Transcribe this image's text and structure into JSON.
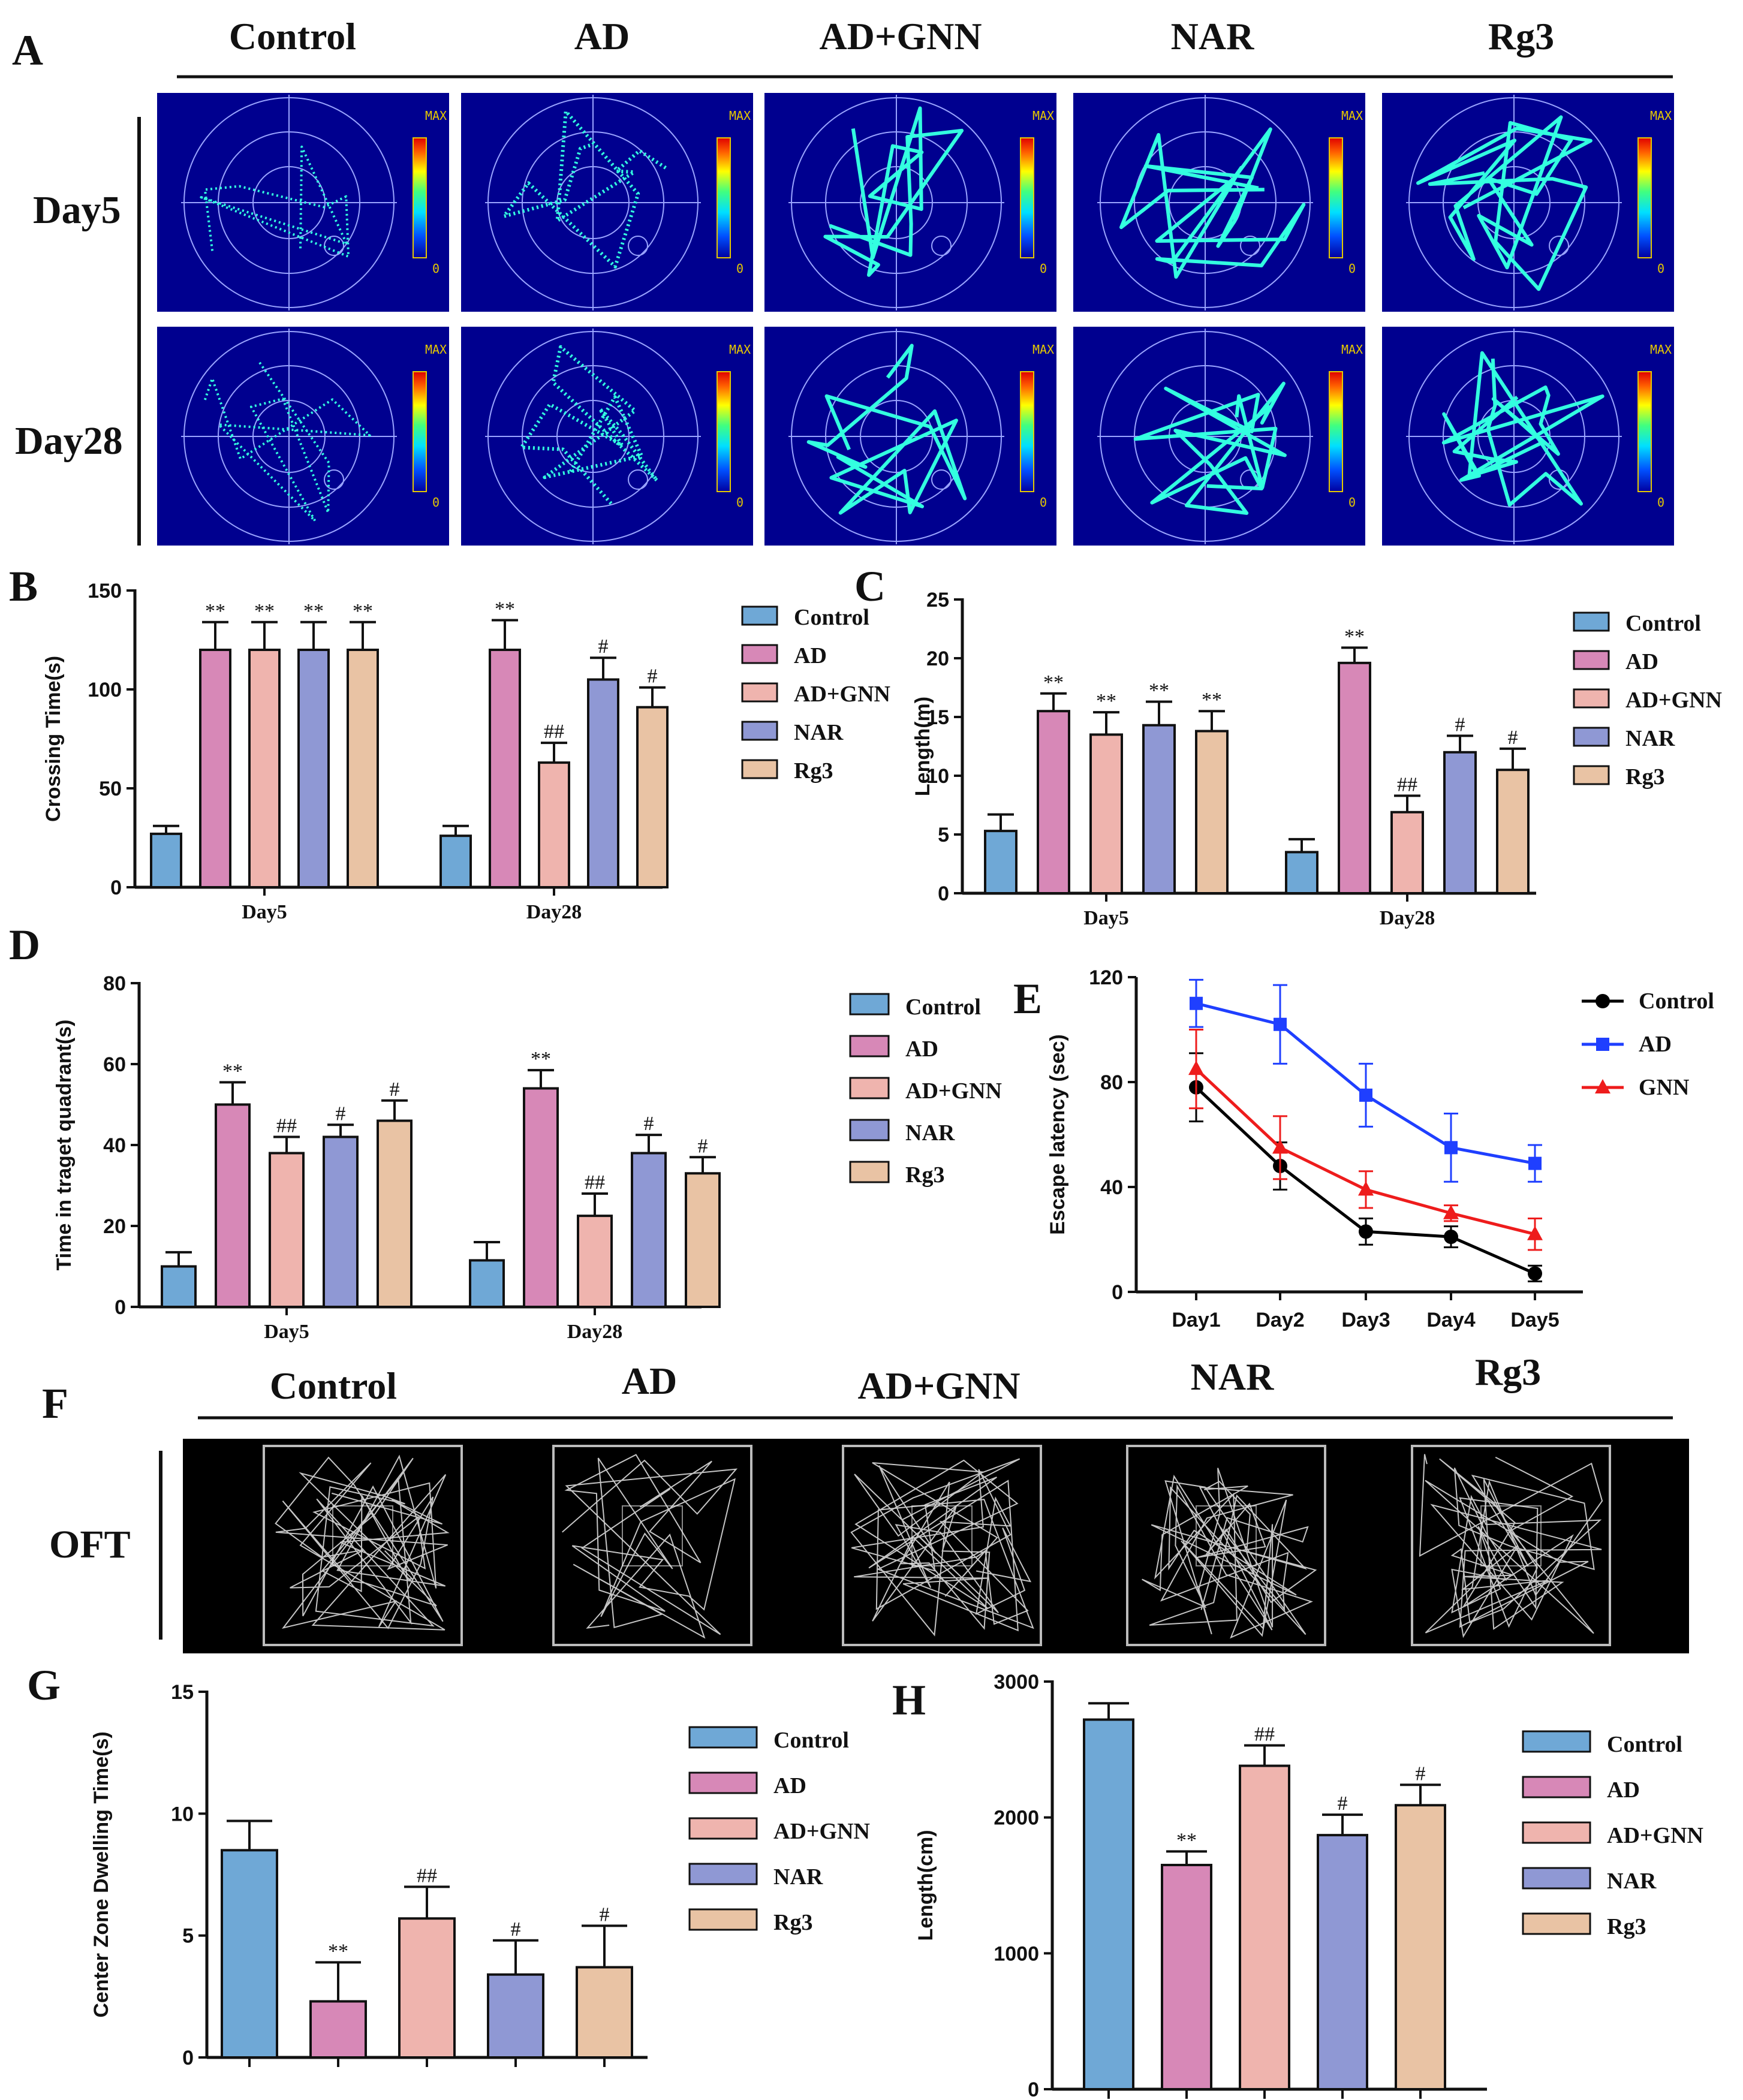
{
  "colors": {
    "Control": "#6fa8d6",
    "AD": "#d788b7",
    "AD+GNN": "#efb4ae",
    "NAR": "#8f98d4",
    "Rg3": "#e9c3a4",
    "line_Control": "#000000",
    "line_AD": "#1f3fff",
    "line_GNN": "#ee1c1c"
  },
  "panels": {
    "A": {
      "letter": "A",
      "groups": [
        "Control",
        "AD",
        "AD+GNN",
        "NAR",
        "Rg3"
      ],
      "rows": [
        "Day5",
        "Day28"
      ],
      "scale_max": "MAX",
      "scale_min": "0"
    },
    "F": {
      "letter": "F",
      "groups": [
        "Control",
        "AD",
        "AD+GNN",
        "NAR",
        "Rg3"
      ],
      "row": "OFT"
    }
  },
  "chart_data": [
    {
      "id": "B",
      "letter": "B",
      "type": "bar",
      "title": "",
      "xlabel": "",
      "ylabel": "Crossing Time(s)",
      "ylim": [
        0,
        150
      ],
      "yticks": [
        0,
        50,
        100,
        150
      ],
      "categories": [
        "Day5",
        "Day28"
      ],
      "series": [
        {
          "name": "Control",
          "values": [
            27,
            26
          ],
          "errors": [
            4,
            5
          ],
          "sig": [
            "",
            ""
          ]
        },
        {
          "name": "AD",
          "values": [
            120,
            120
          ],
          "errors": [
            14,
            15
          ],
          "sig": [
            "**",
            "**"
          ]
        },
        {
          "name": "AD+GNN",
          "values": [
            120,
            63
          ],
          "errors": [
            14,
            10
          ],
          "sig": [
            "**",
            "##"
          ]
        },
        {
          "name": "NAR",
          "values": [
            120,
            105
          ],
          "errors": [
            14,
            11
          ],
          "sig": [
            "**",
            "#"
          ]
        },
        {
          "name": "Rg3",
          "values": [
            120,
            91
          ],
          "errors": [
            14,
            10
          ],
          "sig": [
            "**",
            "#"
          ]
        }
      ]
    },
    {
      "id": "C",
      "letter": "C",
      "type": "bar",
      "title": "",
      "xlabel": "",
      "ylabel": "Length(m)",
      "ylim": [
        0,
        25
      ],
      "yticks": [
        0,
        5,
        10,
        15,
        20,
        25
      ],
      "categories": [
        "Day5",
        "Day28"
      ],
      "series": [
        {
          "name": "Control",
          "values": [
            5.3,
            3.5
          ],
          "errors": [
            1.4,
            1.1
          ],
          "sig": [
            "",
            ""
          ]
        },
        {
          "name": "AD",
          "values": [
            15.5,
            19.6
          ],
          "errors": [
            1.5,
            1.3
          ],
          "sig": [
            "**",
            "**"
          ]
        },
        {
          "name": "AD+GNN",
          "values": [
            13.5,
            6.9
          ],
          "errors": [
            1.9,
            1.4
          ],
          "sig": [
            "**",
            "##"
          ]
        },
        {
          "name": "NAR",
          "values": [
            14.3,
            12.0
          ],
          "errors": [
            2.0,
            1.4
          ],
          "sig": [
            "**",
            "#"
          ]
        },
        {
          "name": "Rg3",
          "values": [
            13.8,
            10.5
          ],
          "errors": [
            1.7,
            1.8
          ],
          "sig": [
            "**",
            "#"
          ]
        }
      ]
    },
    {
      "id": "D",
      "letter": "D",
      "type": "bar",
      "title": "",
      "xlabel": "",
      "ylabel": "Time in traget quadrant(s)",
      "ylim": [
        0,
        80
      ],
      "yticks": [
        0,
        20,
        40,
        60,
        80
      ],
      "categories": [
        "Day5",
        "Day28"
      ],
      "series": [
        {
          "name": "Control",
          "values": [
            10,
            11.5
          ],
          "errors": [
            3.5,
            4.5
          ],
          "sig": [
            "",
            ""
          ]
        },
        {
          "name": "AD",
          "values": [
            50,
            54
          ],
          "errors": [
            5.5,
            4.5
          ],
          "sig": [
            "**",
            "**"
          ]
        },
        {
          "name": "AD+GNN",
          "values": [
            38,
            22.5
          ],
          "errors": [
            4,
            5.5
          ],
          "sig": [
            "##",
            "##"
          ]
        },
        {
          "name": "NAR",
          "values": [
            42,
            38
          ],
          "errors": [
            3,
            4.5
          ],
          "sig": [
            "#",
            "#"
          ]
        },
        {
          "name": "Rg3",
          "values": [
            46,
            33
          ],
          "errors": [
            5,
            4
          ],
          "sig": [
            "#",
            "#"
          ]
        }
      ]
    },
    {
      "id": "E",
      "letter": "E",
      "type": "line",
      "title": "",
      "xlabel": "",
      "ylabel": "Escape latency (sec)",
      "ylim": [
        0,
        120
      ],
      "yticks": [
        0,
        40,
        80,
        120
      ],
      "x": [
        "Day1",
        "Day2",
        "Day3",
        "Day4",
        "Day5"
      ],
      "series": [
        {
          "name": "Control",
          "marker": "circle",
          "values": [
            78,
            48,
            23,
            21,
            7
          ],
          "errors": [
            13,
            9,
            5,
            4,
            3
          ]
        },
        {
          "name": "AD",
          "marker": "square",
          "values": [
            110,
            102,
            75,
            55,
            49
          ],
          "errors": [
            9,
            15,
            12,
            13,
            7
          ]
        },
        {
          "name": "GNN",
          "marker": "triangle",
          "values": [
            85,
            55,
            39,
            30,
            22
          ],
          "errors": [
            15,
            12,
            7,
            3,
            6
          ]
        }
      ]
    },
    {
      "id": "G",
      "letter": "G",
      "type": "bar",
      "title": "",
      "xlabel": "",
      "ylabel": "Center Zone Dwelling Time(s)",
      "ylim": [
        0,
        15
      ],
      "yticks": [
        0,
        5,
        10,
        15
      ],
      "categories": [
        ""
      ],
      "series": [
        {
          "name": "Control",
          "values": [
            8.5
          ],
          "errors": [
            1.2
          ],
          "sig": [
            ""
          ]
        },
        {
          "name": "AD",
          "values": [
            2.3
          ],
          "errors": [
            1.6
          ],
          "sig": [
            "**"
          ]
        },
        {
          "name": "AD+GNN",
          "values": [
            5.7
          ],
          "errors": [
            1.3
          ],
          "sig": [
            "##"
          ]
        },
        {
          "name": "NAR",
          "values": [
            3.4
          ],
          "errors": [
            1.4
          ],
          "sig": [
            "#"
          ]
        },
        {
          "name": "Rg3",
          "values": [
            3.7
          ],
          "errors": [
            1.7
          ],
          "sig": [
            "#"
          ]
        }
      ]
    },
    {
      "id": "H",
      "letter": "H",
      "type": "bar",
      "title": "",
      "xlabel": "",
      "ylabel": "Length(cm)",
      "ylim": [
        0,
        3000
      ],
      "yticks": [
        0,
        1000,
        2000,
        3000
      ],
      "categories": [
        ""
      ],
      "series": [
        {
          "name": "Control",
          "values": [
            2720
          ],
          "errors": [
            120
          ],
          "sig": [
            ""
          ]
        },
        {
          "name": "AD",
          "values": [
            1650
          ],
          "errors": [
            100
          ],
          "sig": [
            "**"
          ]
        },
        {
          "name": "AD+GNN",
          "values": [
            2380
          ],
          "errors": [
            150
          ],
          "sig": [
            "##"
          ]
        },
        {
          "name": "NAR",
          "values": [
            1870
          ],
          "errors": [
            150
          ],
          "sig": [
            "#"
          ]
        },
        {
          "name": "Rg3",
          "values": [
            2090
          ],
          "errors": [
            150
          ],
          "sig": [
            "#"
          ]
        }
      ]
    }
  ]
}
